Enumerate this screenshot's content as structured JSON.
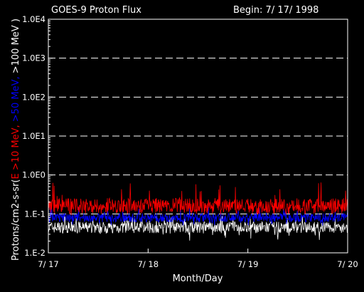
{
  "chart_data": {
    "type": "line",
    "title": "GOES-9 Proton Flux",
    "begin_label": "Begin: 7/ 17/ 1998",
    "xlabel": "Month/Day",
    "ylabel": {
      "prefix": "Protons/cm2-s-sr(",
      "parts": [
        {
          "text": "E >10 MeV,",
          "color": "#ff0000"
        },
        {
          "text": " >50 MeV,",
          "color": "#0000ff"
        },
        {
          "text": " >100 MeV )",
          "color": "#ffffff"
        }
      ]
    },
    "y_scale": "log",
    "ylim": [
      0.01,
      10000
    ],
    "y_ticks": [
      "1.0E4",
      "1.0E3",
      "1.0E2",
      "1.0E1",
      "1.0E0",
      "1.E-1",
      "1.E-2"
    ],
    "x_ticks": [
      "7/ 17",
      "7/ 18",
      "7/ 19",
      "7/ 20"
    ],
    "xlim_days": [
      0,
      3
    ],
    "series": [
      {
        "name": "E >10 MeV",
        "color": "#ff0000",
        "typical": 0.16,
        "range": [
          0.09,
          0.7
        ]
      },
      {
        "name": ">50 MeV",
        "color": "#0000ff",
        "typical": 0.08,
        "range": [
          0.05,
          0.16
        ]
      },
      {
        "name": ">100 MeV",
        "color": "#ffffff",
        "typical": 0.045,
        "range": [
          0.02,
          0.09
        ]
      }
    ]
  }
}
